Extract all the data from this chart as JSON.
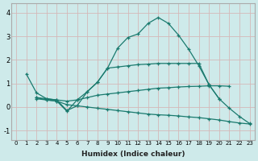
{
  "xlabel": "Humidex (Indice chaleur)",
  "background_color": "#ceeaea",
  "grid_color": "#b8d8d8",
  "line_color": "#1a7a6e",
  "xlim": [
    -0.5,
    23.5
  ],
  "ylim": [
    -1.4,
    4.4
  ],
  "xticks": [
    0,
    1,
    2,
    3,
    4,
    5,
    6,
    7,
    8,
    9,
    10,
    11,
    12,
    13,
    14,
    15,
    16,
    17,
    18,
    19,
    20,
    21,
    22,
    23
  ],
  "yticks": [
    -1,
    0,
    1,
    2,
    3,
    4
  ],
  "lines": [
    {
      "x": [
        1,
        2,
        3,
        4,
        5,
        6,
        7,
        8,
        9,
        10,
        11,
        12,
        13,
        14,
        15,
        16,
        17,
        18,
        19,
        20,
        21,
        22,
        23
      ],
      "y": [
        1.4,
        0.6,
        0.35,
        0.3,
        -0.15,
        0.05,
        0.65,
        1.05,
        1.65,
        2.5,
        2.95,
        3.1,
        3.55,
        3.8,
        3.55,
        3.05,
        2.45,
        1.75,
        0.95,
        0.35,
        -0.05,
        -0.4,
        -0.7
      ]
    },
    {
      "x": [
        2,
        3,
        4,
        5,
        6,
        7,
        8,
        9,
        10,
        11,
        12,
        13,
        14,
        15,
        16,
        17,
        18,
        19,
        20,
        21
      ],
      "y": [
        0.4,
        0.35,
        0.3,
        0.25,
        0.3,
        0.4,
        0.5,
        0.55,
        0.6,
        0.65,
        0.7,
        0.75,
        0.8,
        0.82,
        0.85,
        0.87,
        0.88,
        0.9,
        0.9,
        0.88
      ]
    },
    {
      "x": [
        2,
        3,
        4,
        5,
        6,
        7,
        8,
        9,
        10,
        11,
        12,
        13,
        14,
        15,
        16,
        17,
        18,
        19,
        20,
        21,
        22,
        23
      ],
      "y": [
        0.35,
        0.3,
        0.25,
        0.1,
        0.05,
        0.0,
        -0.05,
        -0.1,
        -0.15,
        -0.2,
        -0.25,
        -0.3,
        -0.33,
        -0.35,
        -0.38,
        -0.42,
        -0.45,
        -0.5,
        -0.55,
        -0.62,
        -0.68,
        -0.72
      ]
    },
    {
      "x": [
        2,
        3,
        4,
        5,
        6,
        7,
        8,
        9,
        10,
        11,
        12,
        13,
        14,
        15,
        16,
        17,
        18,
        19,
        20
      ],
      "y": [
        0.4,
        0.3,
        0.25,
        -0.18,
        0.3,
        0.65,
        1.05,
        1.65,
        1.7,
        1.75,
        1.8,
        1.82,
        1.85,
        1.85,
        1.85,
        1.85,
        1.85,
        0.95,
        0.35
      ]
    }
  ]
}
